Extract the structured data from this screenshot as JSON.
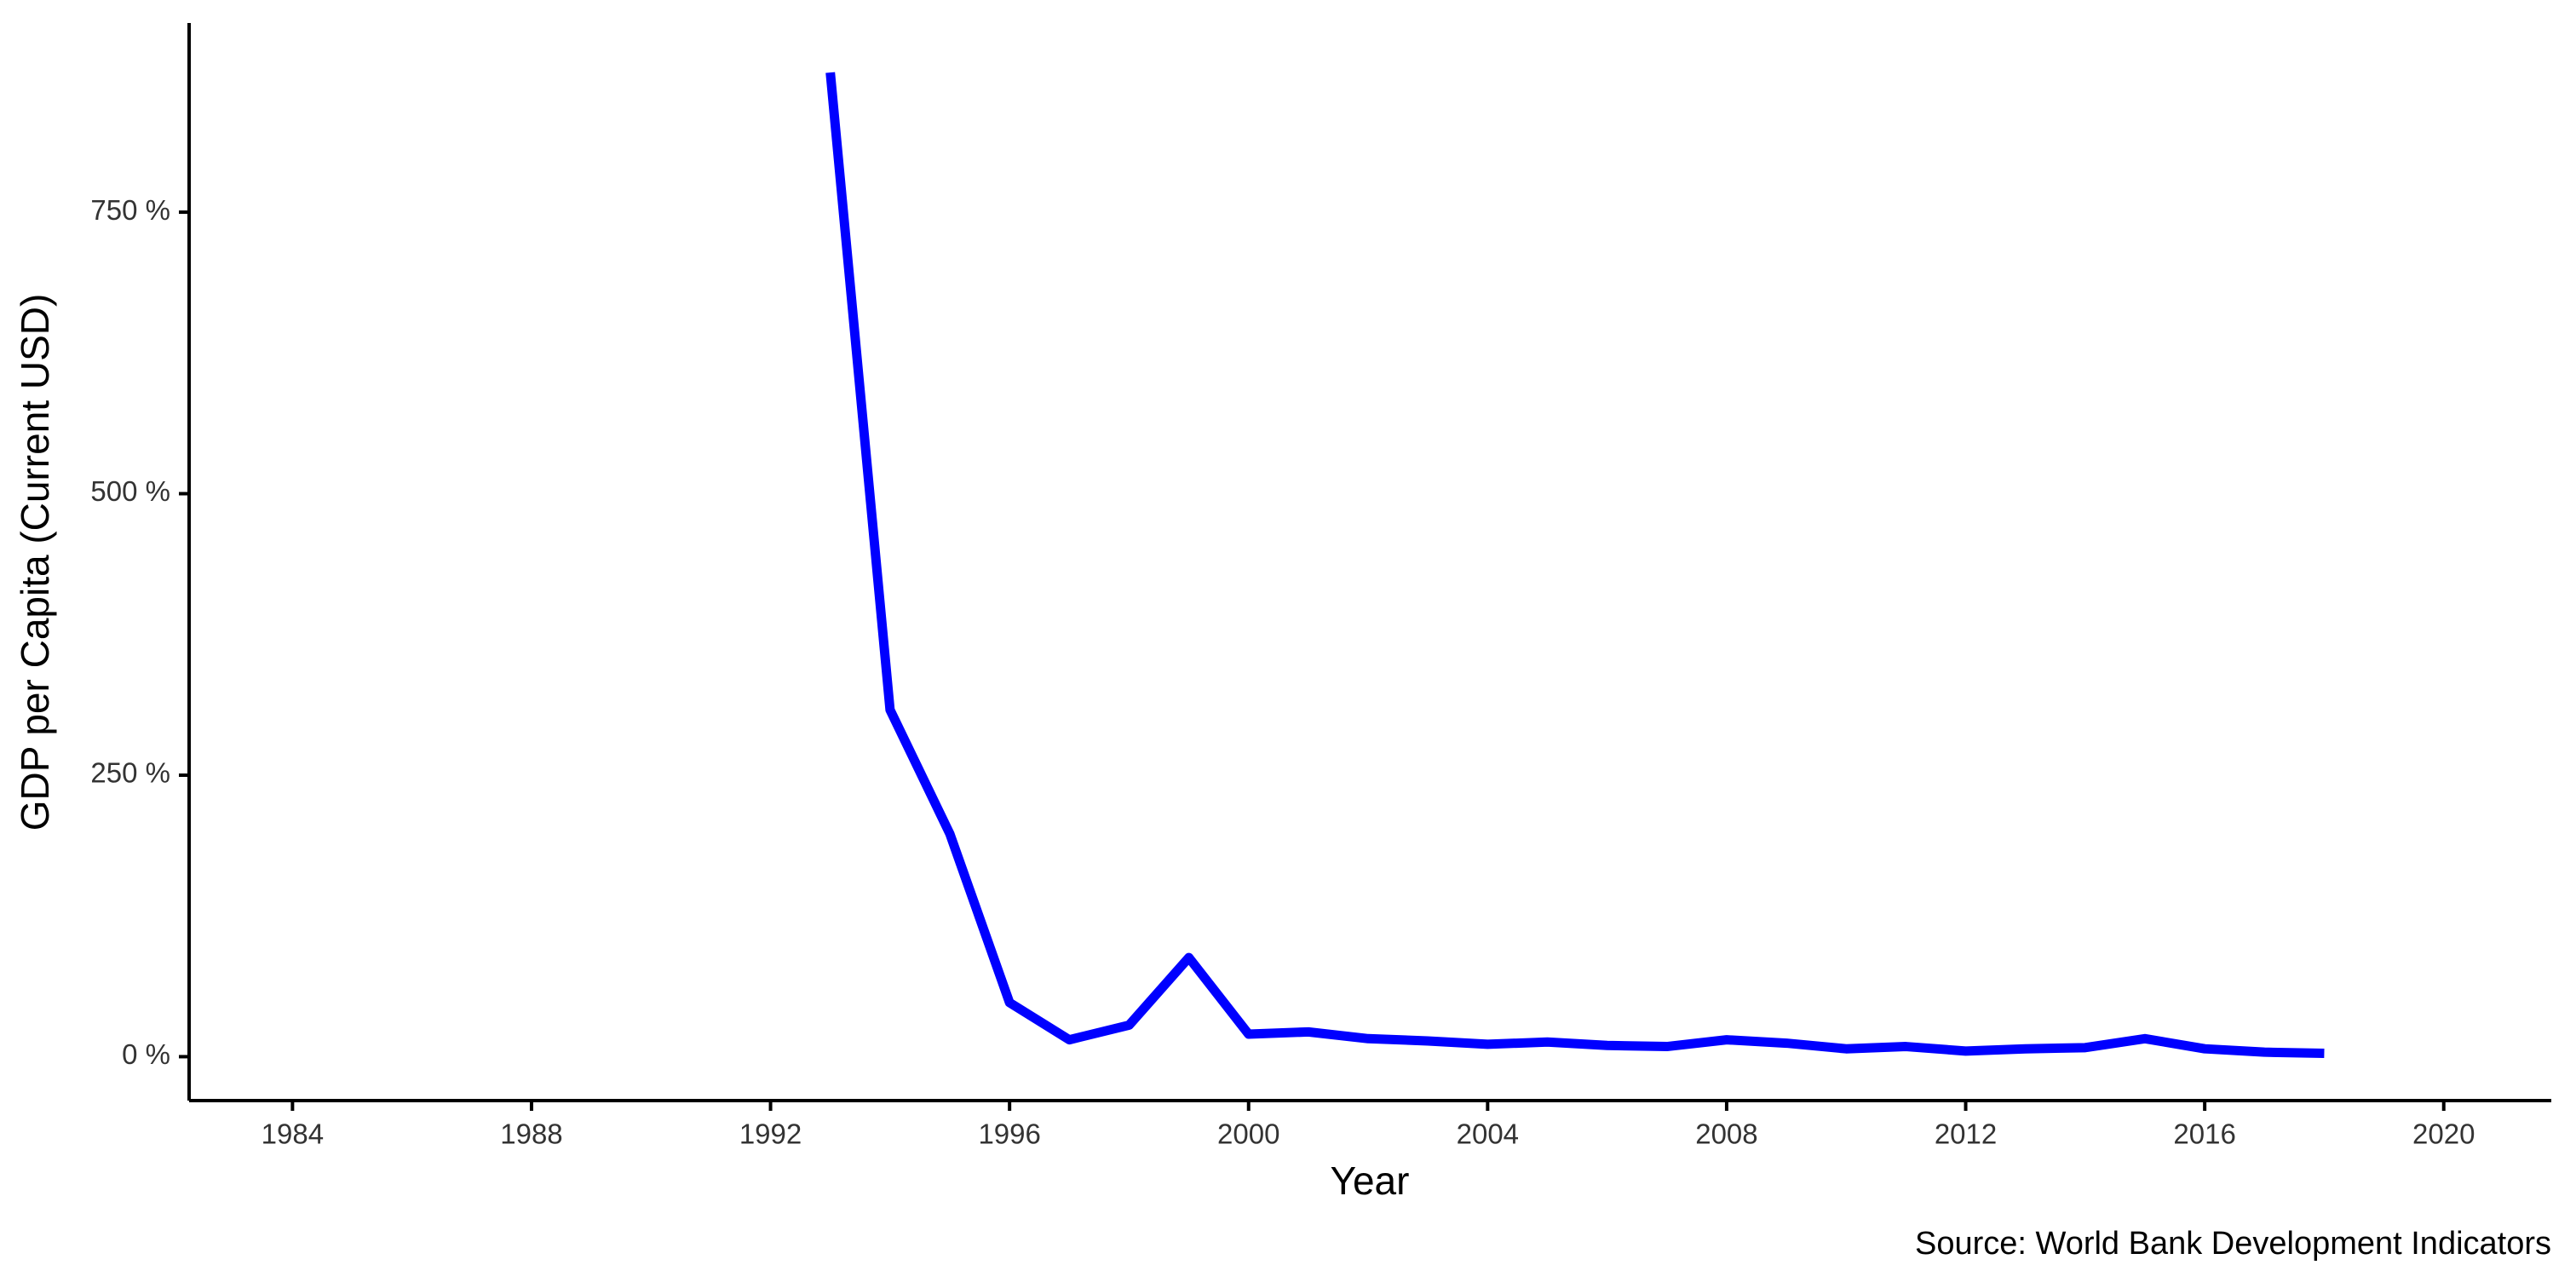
{
  "chart_data": {
    "type": "line",
    "x_label": "Year",
    "y_label": "GDP per Capita (Current USD)",
    "caption": "Source: World Bank Development Indicators",
    "x": [
      1993,
      1994,
      1995,
      1996,
      1997,
      1998,
      1999,
      2000,
      2001,
      2002,
      2003,
      2004,
      2005,
      2006,
      2007,
      2008,
      2009,
      2010,
      2011,
      2012,
      2013,
      2014,
      2015,
      2016,
      2017,
      2018
    ],
    "values": [
      874,
      308,
      198,
      48,
      15,
      28,
      88,
      20,
      22,
      16,
      14,
      11,
      13,
      10,
      9,
      15,
      12,
      7,
      9,
      5,
      7,
      8,
      16,
      7,
      4,
      3
    ],
    "color": "#0000ff",
    "xlim": [
      1982.27,
      2021.8
    ],
    "xticks": [
      1984,
      1988,
      1992,
      1996,
      2000,
      2004,
      2008,
      2012,
      2016,
      2020
    ],
    "ylim": [
      -39,
      918
    ],
    "yticks": [
      {
        "value": 0,
        "label": "0 %"
      },
      {
        "value": 250,
        "label": "250 %"
      },
      {
        "value": 500,
        "label": "500 %"
      },
      {
        "value": 750,
        "label": "750 %"
      }
    ],
    "grid": false
  }
}
